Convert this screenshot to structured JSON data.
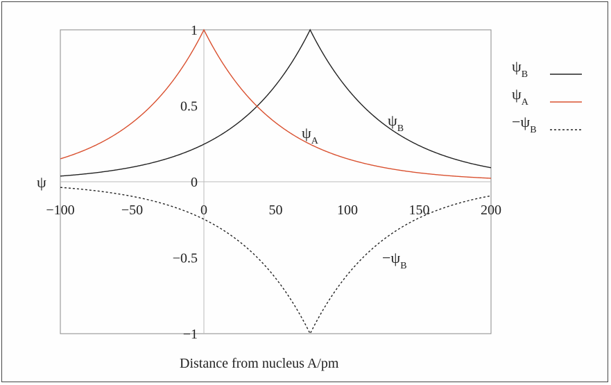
{
  "chart_data": {
    "type": "line",
    "xlabel": "Distance from nucleus A/pm",
    "ylabel": "ψ",
    "xlim": [
      -100,
      200
    ],
    "ylim": [
      -1,
      1
    ],
    "x_ticks": [
      -100,
      -50,
      0,
      50,
      100,
      150,
      200
    ],
    "y_ticks": [
      -1,
      -0.5,
      0,
      0.5,
      1
    ],
    "x_tick_labels": [
      "−100",
      "−50",
      "0",
      "50",
      "100",
      "150",
      "200"
    ],
    "y_tick_labels": [
      "−1",
      "−0.5",
      "0",
      "0.5",
      "1"
    ],
    "nucleus_separation_pm": 74,
    "decay_length_pm": 52.9,
    "series": [
      {
        "name": "ψB",
        "color": "#222222",
        "style": "solid",
        "x": [
          -100,
          -75,
          -50,
          -25,
          0,
          25,
          50,
          74,
          100,
          125,
          150,
          175,
          200
        ],
        "y": [
          0.04,
          0.066,
          0.106,
          0.17,
          0.247,
          0.39,
          0.635,
          1.0,
          0.612,
          0.382,
          0.238,
          0.148,
          0.092
        ]
      },
      {
        "name": "ψA",
        "color": "#d9502f",
        "style": "solid",
        "x": [
          -100,
          -75,
          -50,
          -25,
          0,
          25,
          50,
          74,
          100,
          125,
          150,
          175,
          200
        ],
        "y": [
          0.151,
          0.242,
          0.389,
          0.623,
          1.0,
          0.623,
          0.389,
          0.247,
          0.151,
          0.094,
          0.059,
          0.037,
          0.023
        ]
      },
      {
        "name": "−ψB",
        "color": "#222222",
        "style": "dashed",
        "x": [
          -100,
          -75,
          -50,
          -25,
          0,
          25,
          50,
          74,
          100,
          125,
          150,
          175,
          200
        ],
        "y": [
          -0.04,
          -0.066,
          -0.106,
          -0.17,
          -0.247,
          -0.39,
          -0.635,
          -1.0,
          -0.612,
          -0.382,
          -0.238,
          -0.148,
          -0.092
        ]
      }
    ],
    "curve_labels": [
      {
        "main": "ψ",
        "sub": "A",
        "series": "ψA"
      },
      {
        "main": "ψ",
        "sub": "B",
        "series": "ψB"
      },
      {
        "main": "−ψ",
        "sub": "B",
        "series": "−ψB"
      }
    ],
    "legend": {
      "placement": "right",
      "entries": [
        {
          "main": "ψ",
          "sub": "B",
          "color": "#222222",
          "style": "solid"
        },
        {
          "main": "ψ",
          "sub": "A",
          "color": "#d9502f",
          "style": "solid"
        },
        {
          "main": "−ψ",
          "sub": "B",
          "color": "#222222",
          "style": "dashed"
        }
      ]
    },
    "grid": false
  }
}
